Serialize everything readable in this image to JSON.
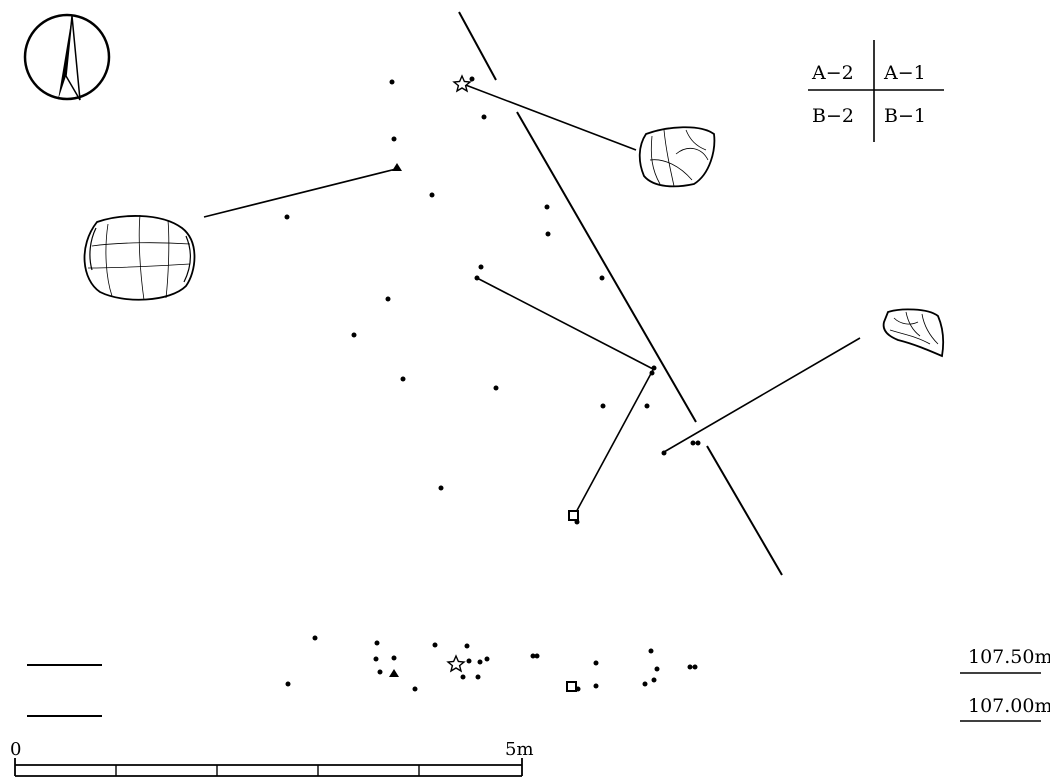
{
  "grid_key": {
    "top_left": "A−2",
    "top_right": "A−1",
    "bottom_left": "B−2",
    "bottom_right": "B−1"
  },
  "elevations": {
    "upper": "107.50m",
    "lower": "107.00m"
  },
  "scale_bar": {
    "start_label": "0",
    "end_label": "5m"
  },
  "icons": {
    "north_arrow": "north-arrow-icon",
    "artifact_sketch": "stone-artifact-drawing"
  },
  "symbols": [
    "dot",
    "triangle",
    "star",
    "square"
  ]
}
